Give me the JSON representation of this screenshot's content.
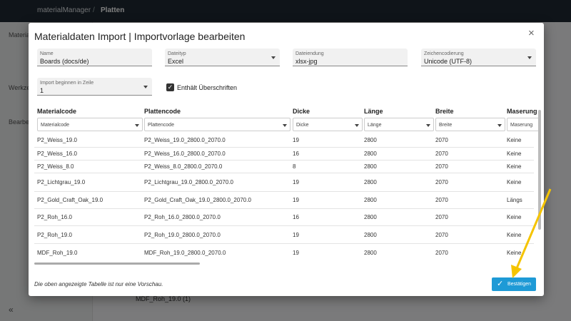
{
  "app": {
    "name": "materialManager",
    "separator": "/",
    "page": "Platten",
    "sidebar": [
      "Material",
      "Werkze",
      "Bearbeit"
    ],
    "group_row": "MDF_Roh_19.0 (1)"
  },
  "dialog": {
    "title": "Materialdaten Import | Importvorlage bearbeiten",
    "fields": [
      {
        "label": "Name",
        "value": "Boards (docs/de)",
        "dropdown": false
      },
      {
        "label": "Dateityp",
        "value": "Excel",
        "dropdown": true
      },
      {
        "label": "Dateiendung",
        "value": "xlsx-jpg",
        "dropdown": false
      },
      {
        "label": "Zeichencodierung",
        "value": "Unicode (UTF-8)",
        "dropdown": true
      }
    ],
    "start_row": {
      "label": "Import beginnen in Zeile",
      "value": "1"
    },
    "checkbox": {
      "label": "Enthält Überschriften",
      "checked": true
    },
    "table": {
      "columns": [
        "Materialcode",
        "Plattencode",
        "Dicke",
        "Länge",
        "Breite",
        "Maserung"
      ],
      "filters": [
        "Materialcode",
        "Plattencode",
        "Dicke",
        "Länge",
        "Breite",
        "Maserung"
      ],
      "rows": [
        [
          "P2_Weiss_19.0",
          "P2_Weiss_19.0_2800.0_2070.0",
          "19",
          "2800",
          "2070",
          "Keine"
        ],
        [
          "P2_Weiss_16.0",
          "P2_Weiss_16.0_2800.0_2070.0",
          "16",
          "2800",
          "2070",
          "Keine"
        ],
        [
          "P2_Weiss_8.0",
          "P2_Weiss_8.0_2800.0_2070.0",
          "8",
          "2800",
          "2070",
          "Keine"
        ],
        [
          "P2_Lichtgrau_19.0",
          "P2_Lichtgrau_19.0_2800.0_2070.0",
          "19",
          "2800",
          "2070",
          "Keine"
        ],
        [
          "P2_Gold_Craft_Oak_19.0",
          "P2_Gold_Craft_Oak_19.0_2800.0_2070.0",
          "19",
          "2800",
          "2070",
          "Längs"
        ],
        [
          "P2_Roh_16.0",
          "P2_Roh_16.0_2800.0_2070.0",
          "16",
          "2800",
          "2070",
          "Keine"
        ],
        [
          "P2_Roh_19.0",
          "P2_Roh_19.0_2800.0_2070.0",
          "19",
          "2800",
          "2070",
          "Keine"
        ],
        [
          "MDF_Roh_19.0",
          "MDF_Roh_19.0_2800.0_2070.0",
          "19",
          "2800",
          "2070",
          "Keine"
        ]
      ]
    },
    "note": "Die oben angezeigte Tabelle ist nur eine Vorschau.",
    "confirm": "Bestätigen"
  }
}
